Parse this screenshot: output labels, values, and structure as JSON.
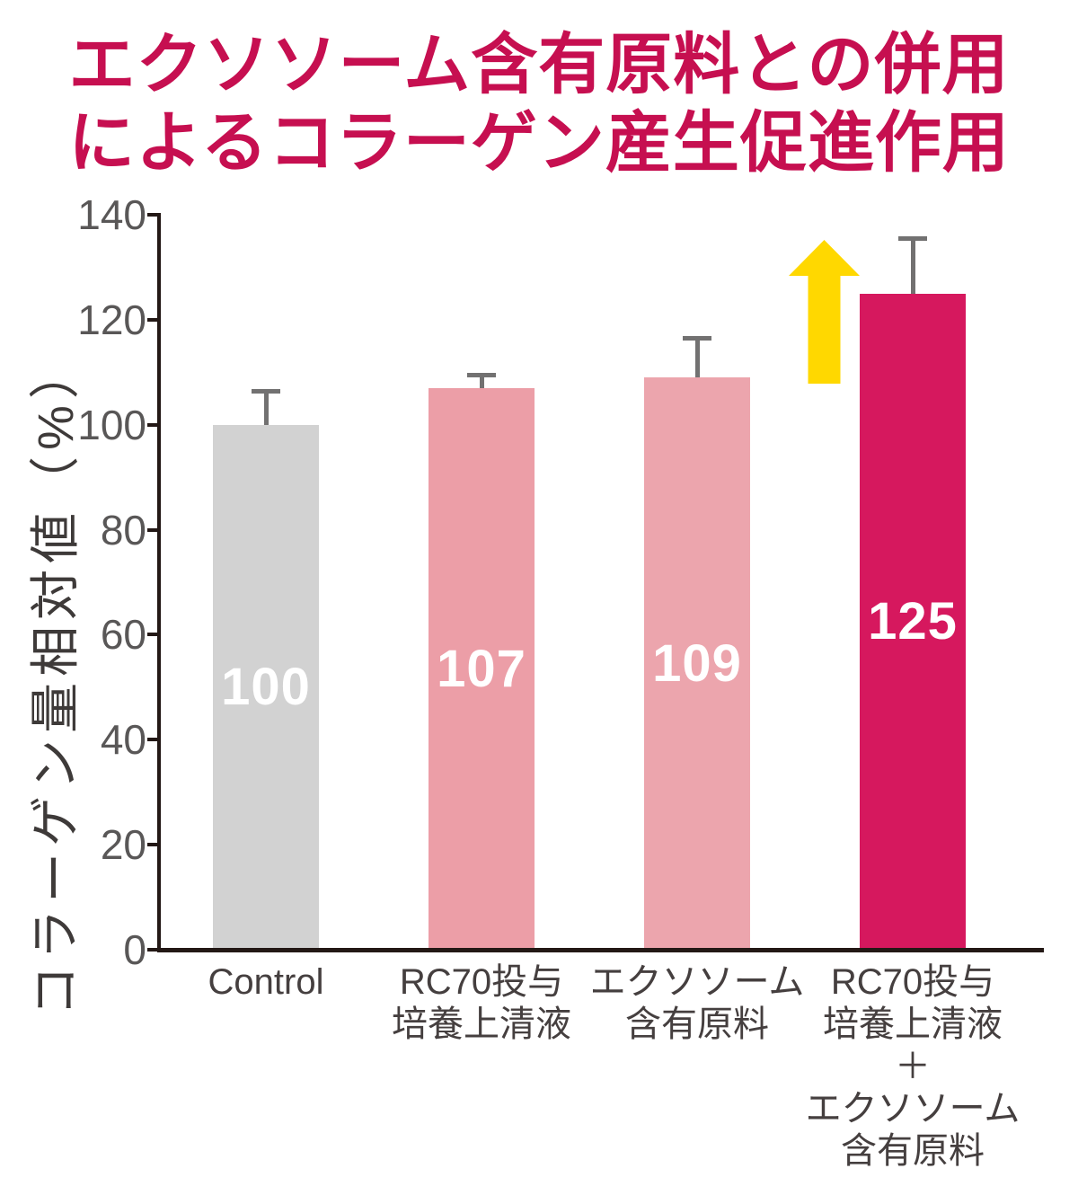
{
  "title": {
    "line1": "エクソソーム含有原料との併用",
    "line2": "によるコラーゲン産生促進作用",
    "color": "#c60f50"
  },
  "chart_data": {
    "type": "bar",
    "title": "エクソソーム含有原料との併用によるコラーゲン産生促進作用",
    "ylabel": "コラーゲン量相対値（%）",
    "xlabel": "",
    "ylim": [
      0,
      140
    ],
    "yticks": [
      0,
      20,
      40,
      60,
      80,
      100,
      120,
      140
    ],
    "grid": false,
    "legend": false,
    "categories": [
      "Control",
      "RC70投与 培養上清液",
      "エクソソーム 含有原料",
      "RC70投与 培養上清液 ＋ エクソソーム 含有原料"
    ],
    "category_lines": [
      [
        "Control"
      ],
      [
        "RC70投与",
        "培養上清液"
      ],
      [
        "エクソソーム",
        "含有原料"
      ],
      [
        "RC70投与",
        "培養上清液",
        "＋",
        "エクソソーム",
        "含有原料"
      ]
    ],
    "values": [
      100,
      107,
      109,
      125
    ],
    "value_labels": [
      "100",
      "107",
      "109",
      "125"
    ],
    "error_bar_tops": [
      106.5,
      109.5,
      116.5,
      135.5
    ],
    "bar_colors": [
      "#d2d2d2",
      "#ec9ea7",
      "#eca5ad",
      "#d6185e"
    ],
    "value_label_color": "#ffffff",
    "annotation": {
      "shape": "up-arrow",
      "color": "#ffd800",
      "meaning": "increase-highlight-on-4th-bar"
    }
  },
  "style_colors": {
    "axis": "#231815",
    "tick_label": "#595757",
    "x_label": "#453f3f",
    "error_bar": "#727171",
    "title": "#c60f50"
  }
}
